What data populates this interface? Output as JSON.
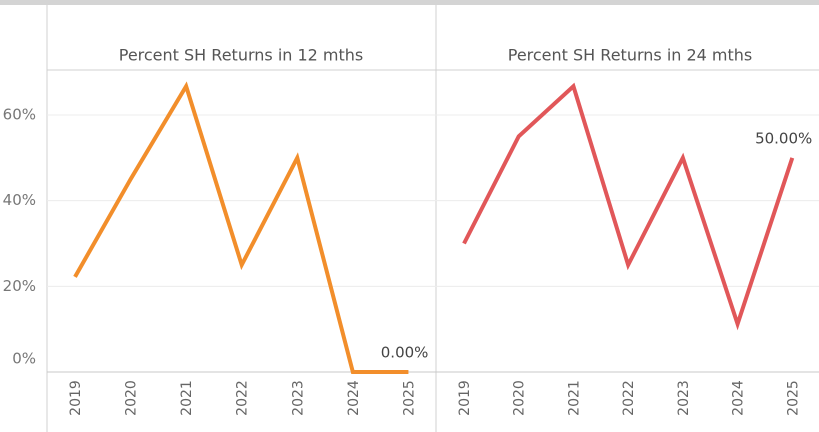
{
  "chart_data": [
    {
      "type": "line",
      "title": "Percent SH Returns in 12 mths",
      "categories": [
        "2019",
        "2020",
        "2021",
        "2022",
        "2023",
        "2024",
        "2025"
      ],
      "series": [
        {
          "name": "Percent SH Returns in 12 mths",
          "color": "#f28e2b",
          "values": [
            22.2,
            45,
            66.7,
            25,
            50,
            0,
            0
          ],
          "value_labels": [
            null,
            null,
            null,
            null,
            null,
            null,
            "0.00%"
          ]
        }
      ],
      "ylim": [
        0,
        70.5
      ],
      "yticks": [
        {
          "value": 0,
          "label": "0%"
        },
        {
          "value": 20,
          "label": "20%"
        },
        {
          "value": 40,
          "label": "40%"
        },
        {
          "value": 60,
          "label": "60%"
        }
      ],
      "grid": true
    },
    {
      "type": "line",
      "title": "Percent SH Returns in 24 mths",
      "categories": [
        "2019",
        "2020",
        "2021",
        "2022",
        "2023",
        "2024",
        "2025"
      ],
      "series": [
        {
          "name": "Percent SH Returns in 24 mths",
          "color": "#e15759",
          "values": [
            30,
            55,
            66.7,
            25,
            50,
            11.2,
            50
          ],
          "value_labels": [
            null,
            null,
            null,
            null,
            null,
            null,
            "50.00%"
          ]
        }
      ],
      "ylim": [
        0,
        70.5
      ],
      "grid": true
    }
  ]
}
